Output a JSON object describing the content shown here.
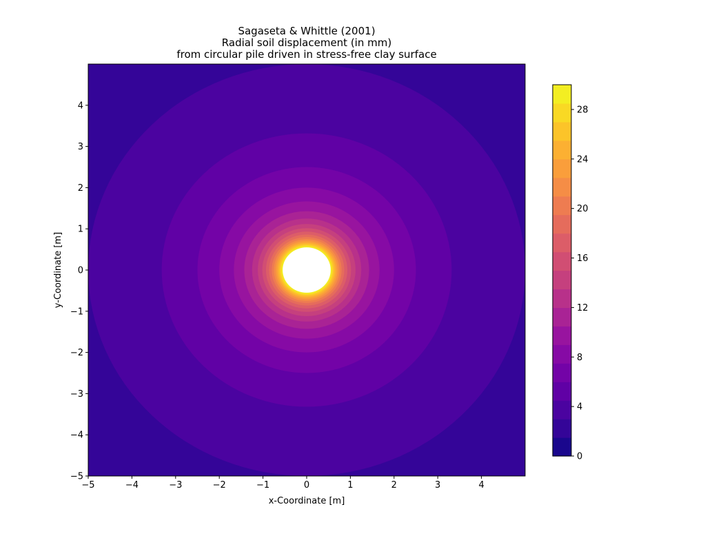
{
  "chart_data": {
    "type": "heatmap",
    "title": [
      "Sagaseta & Whittle (2001)",
      "Radial soil displacement (in mm)",
      "from circular pile driven in stress-free clay surface"
    ],
    "xlabel": "x-Coordinate [m]",
    "ylabel": "y-Coordinate [m]",
    "xlim": [
      -5,
      5
    ],
    "ylim": [
      -5,
      5
    ],
    "xticks": [
      -5,
      -4,
      -3,
      -2,
      -1,
      0,
      1,
      2,
      3,
      4
    ],
    "yticks": [
      -5,
      -4,
      -3,
      -2,
      -1,
      0,
      1,
      2,
      3,
      4
    ],
    "colormap": "plasma",
    "colorbar": {
      "min": 0,
      "max": 30,
      "level_step": 1.5,
      "ticks": [
        0,
        4,
        8,
        12,
        16,
        20,
        24,
        28
      ]
    },
    "pile": {
      "center": [
        0,
        0
      ],
      "radius_m": 0.55,
      "fill": "#ffffff"
    },
    "field": {
      "description_values": "displacement decreases radially from center",
      "profile_r_m": [
        0.55,
        0.8,
        1.2,
        2.0,
        3.0,
        4.0,
        5.0,
        7.0
      ],
      "profile_mm": [
        30,
        19.5,
        12.5,
        7.5,
        5.0,
        3.7,
        3.0,
        2.1
      ]
    },
    "grid": false,
    "legend": "none"
  }
}
